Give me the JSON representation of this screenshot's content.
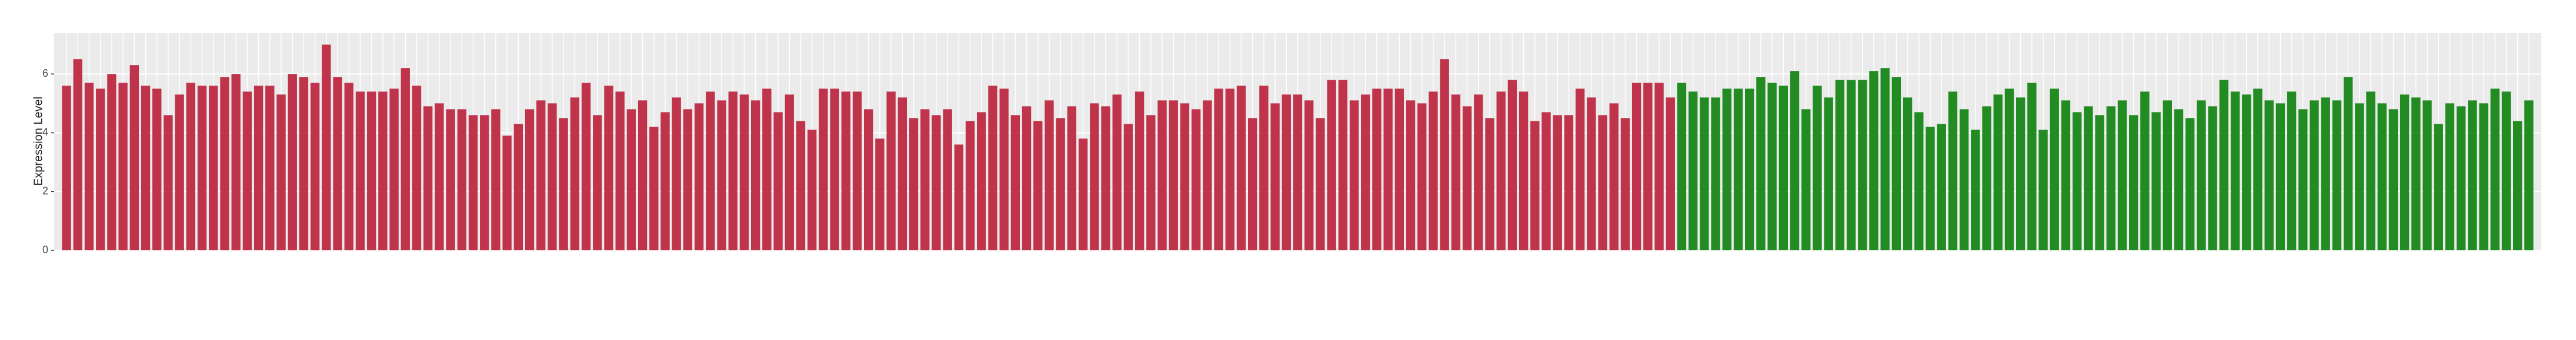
{
  "chart_data": {
    "type": "bar",
    "y_label": "Expression Level",
    "ylim": [
      0,
      7.4
    ],
    "yticks": [
      0,
      2,
      4,
      6
    ],
    "grid": true,
    "series": [
      {
        "color": "#c0344b",
        "values": [
          5.6,
          6.5,
          5.7,
          5.5,
          6.0,
          5.7,
          6.3,
          5.6,
          5.5,
          4.6,
          5.3,
          5.7,
          5.6,
          5.6,
          5.9,
          6.0,
          5.4,
          5.6,
          5.6,
          5.3,
          6.0,
          5.9,
          5.7,
          7.0,
          5.9,
          5.7,
          5.4,
          5.4,
          5.4,
          5.5,
          6.2,
          5.6,
          4.9,
          5.0,
          4.8,
          4.8,
          4.6,
          4.6,
          4.8,
          3.9,
          4.3,
          4.8,
          5.1,
          5.0,
          4.5,
          5.2,
          5.7,
          4.6,
          5.6,
          5.4,
          4.8,
          5.1,
          4.2,
          4.7,
          5.2,
          4.8,
          5.0,
          5.4,
          5.1,
          5.4,
          5.3,
          5.1,
          5.5,
          4.7,
          5.3,
          4.4,
          4.1,
          5.5,
          5.5,
          5.4,
          5.4,
          4.8,
          3.8,
          5.4,
          5.2,
          4.5,
          4.8,
          4.6,
          4.8,
          3.6,
          4.4,
          4.7,
          5.6,
          5.5,
          4.6,
          4.9,
          4.4,
          5.1,
          4.5,
          4.9,
          3.8,
          5.0,
          4.9,
          5.3,
          4.3,
          5.4,
          4.6,
          5.1,
          5.1,
          5.0,
          4.8,
          5.1,
          5.5,
          5.5,
          5.6,
          4.5,
          5.6,
          5.0,
          5.3,
          5.3,
          5.1,
          4.5,
          5.8,
          5.8,
          5.1,
          5.3,
          5.5,
          5.5,
          5.5,
          5.1,
          5.0,
          5.4,
          6.5,
          5.3,
          4.9,
          5.3,
          4.5,
          5.4,
          5.8,
          5.4,
          4.4,
          4.7,
          4.6,
          4.6,
          5.5,
          5.2,
          4.6,
          5.0,
          4.5,
          5.7,
          5.7,
          5.7,
          5.2,
          null,
          null,
          null,
          null,
          null,
          null,
          null,
          null,
          null,
          null,
          null,
          null,
          null,
          null,
          null,
          null,
          null,
          null,
          null,
          null,
          null,
          null,
          null,
          null,
          null,
          null,
          null,
          null,
          null,
          null,
          null,
          null,
          null,
          null,
          null,
          null,
          null,
          null,
          null,
          null,
          null,
          null,
          null,
          null,
          null,
          null,
          null,
          null,
          null,
          null,
          null,
          null,
          null,
          null,
          null,
          null,
          null,
          null,
          null,
          null,
          null,
          null,
          null,
          null,
          null,
          null,
          null,
          null,
          null,
          null,
          null,
          null,
          null,
          null,
          null,
          null
        ]
      },
      {
        "color": "#228b22",
        "values": [
          null,
          null,
          null,
          null,
          null,
          null,
          null,
          null,
          null,
          null,
          null,
          null,
          null,
          null,
          null,
          null,
          null,
          null,
          null,
          null,
          null,
          null,
          null,
          null,
          null,
          null,
          null,
          null,
          null,
          null,
          null,
          null,
          null,
          null,
          null,
          null,
          null,
          null,
          null,
          null,
          null,
          null,
          null,
          null,
          null,
          null,
          null,
          null,
          null,
          null,
          null,
          null,
          null,
          null,
          null,
          null,
          null,
          null,
          null,
          null,
          null,
          null,
          null,
          null,
          null,
          null,
          null,
          null,
          null,
          null,
          null,
          null,
          null,
          null,
          null,
          null,
          null,
          null,
          null,
          null,
          null,
          null,
          null,
          null,
          null,
          null,
          null,
          null,
          null,
          null,
          null,
          null,
          null,
          null,
          null,
          null,
          null,
          null,
          null,
          null,
          null,
          null,
          null,
          null,
          null,
          null,
          null,
          null,
          null,
          null,
          null,
          null,
          null,
          null,
          null,
          null,
          null,
          null,
          null,
          null,
          null,
          null,
          null,
          null,
          null,
          null,
          null,
          null,
          null,
          null,
          null,
          null,
          null,
          null,
          null,
          null,
          null,
          null,
          null,
          null,
          null,
          null,
          null,
          5.7,
          5.4,
          5.2,
          5.2,
          5.5,
          5.5,
          5.5,
          5.9,
          5.7,
          5.6,
          6.1,
          4.8,
          5.6,
          5.2,
          5.8,
          5.8,
          5.8,
          6.1,
          6.2,
          5.9,
          5.2,
          4.7,
          4.2,
          4.3,
          5.4,
          4.8,
          4.1,
          4.9,
          5.3,
          5.5,
          5.2,
          5.7,
          4.1,
          5.5,
          5.1,
          4.7,
          4.9,
          4.6,
          4.9,
          5.1,
          4.6,
          5.4,
          4.7,
          5.1,
          4.8,
          4.5,
          5.1,
          4.9,
          5.8,
          5.4,
          5.3,
          5.5,
          5.1,
          5.0,
          5.4,
          4.8,
          5.1,
          5.2,
          5.1,
          5.9,
          5.0,
          5.4,
          5.0,
          4.8,
          5.3,
          5.2,
          5.1,
          4.3,
          5.0,
          4.9,
          5.1,
          5.0,
          5.5,
          5.4,
          4.4,
          5.1
        ]
      }
    ]
  }
}
